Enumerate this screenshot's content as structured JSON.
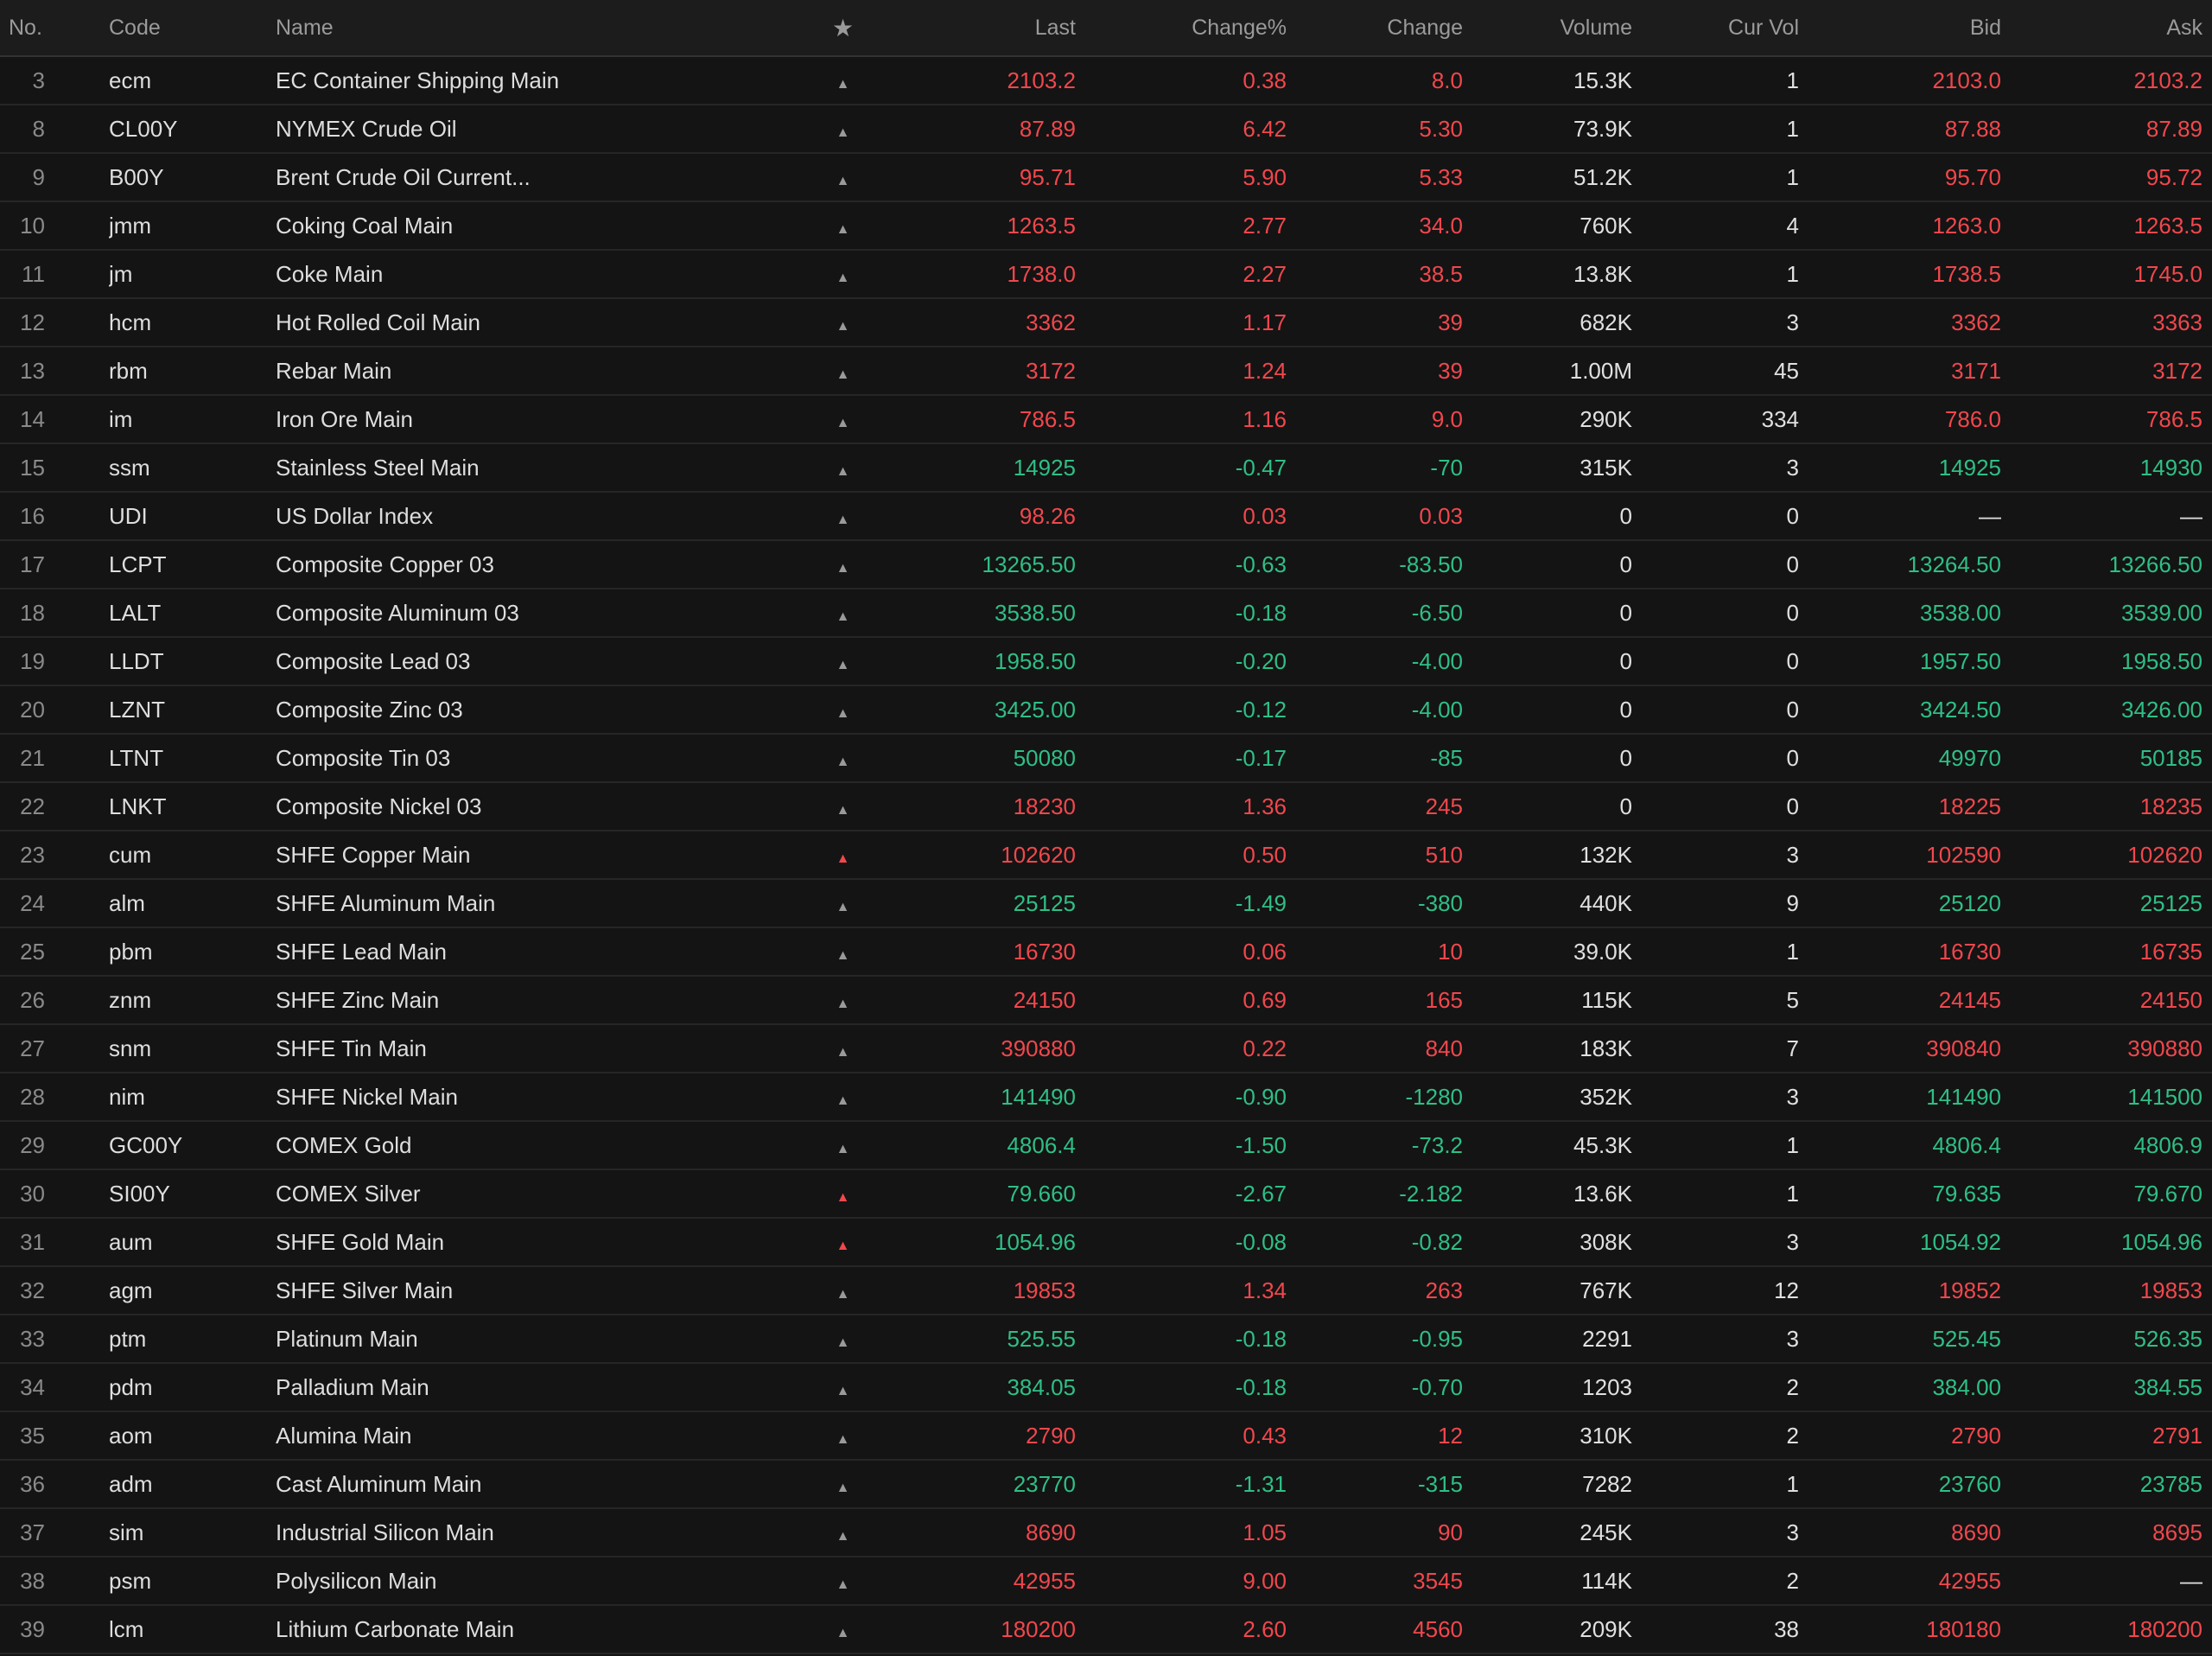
{
  "colors": {
    "background": "#141414",
    "header_background": "#1c1c1c",
    "up": "#f1474d",
    "down": "#2fbf86",
    "neutral": "#e0e0e0",
    "muted": "#9a9a9a"
  },
  "header": {
    "no": "No.",
    "code": "Code",
    "name": "Name",
    "fav_icon": "star-icon",
    "last": "Last",
    "change_pct": "Change%",
    "change": "Change",
    "volume": "Volume",
    "cur_vol": "Cur Vol",
    "bid": "Bid",
    "ask": "Ask"
  },
  "rows": [
    {
      "no": "3",
      "code": "ecm",
      "name": "EC Container Shipping Main",
      "mark": "▲",
      "mark_active": false,
      "last": "2103.2",
      "pct": "0.38",
      "chg": "8.0",
      "volume": "15.3K",
      "cur": "1",
      "bid": "2103.0",
      "ask": "2103.2",
      "trend": "up",
      "bid_trend": "up",
      "ask_trend": "up"
    },
    {
      "no": "8",
      "code": "CL00Y",
      "name": "NYMEX Crude Oil",
      "mark": "▲",
      "mark_active": false,
      "last": "87.89",
      "pct": "6.42",
      "chg": "5.30",
      "volume": "73.9K",
      "cur": "1",
      "bid": "87.88",
      "ask": "87.89",
      "trend": "up",
      "bid_trend": "up",
      "ask_trend": "up"
    },
    {
      "no": "9",
      "code": "B00Y",
      "name": "Brent Crude Oil Current...",
      "mark": "▲",
      "mark_active": false,
      "last": "95.71",
      "pct": "5.90",
      "chg": "5.33",
      "volume": "51.2K",
      "cur": "1",
      "bid": "95.70",
      "ask": "95.72",
      "trend": "up",
      "bid_trend": "up",
      "ask_trend": "up"
    },
    {
      "no": "10",
      "code": "jmm",
      "name": "Coking Coal Main",
      "mark": "▲",
      "mark_active": false,
      "last": "1263.5",
      "pct": "2.77",
      "chg": "34.0",
      "volume": "760K",
      "cur": "4",
      "bid": "1263.0",
      "ask": "1263.5",
      "trend": "up",
      "bid_trend": "up",
      "ask_trend": "up"
    },
    {
      "no": "11",
      "code": "jm",
      "name": "Coke Main",
      "mark": "▲",
      "mark_active": false,
      "last": "1738.0",
      "pct": "2.27",
      "chg": "38.5",
      "volume": "13.8K",
      "cur": "1",
      "bid": "1738.5",
      "ask": "1745.0",
      "trend": "up",
      "bid_trend": "up",
      "ask_trend": "up"
    },
    {
      "no": "12",
      "code": "hcm",
      "name": "Hot Rolled Coil Main",
      "mark": "▲",
      "mark_active": false,
      "last": "3362",
      "pct": "1.17",
      "chg": "39",
      "volume": "682K",
      "cur": "3",
      "bid": "3362",
      "ask": "3363",
      "trend": "up",
      "bid_trend": "up",
      "ask_trend": "up"
    },
    {
      "no": "13",
      "code": "rbm",
      "name": "Rebar Main",
      "mark": "▲",
      "mark_active": false,
      "last": "3172",
      "pct": "1.24",
      "chg": "39",
      "volume": "1.00M",
      "cur": "45",
      "bid": "3171",
      "ask": "3172",
      "trend": "up",
      "bid_trend": "up",
      "ask_trend": "up"
    },
    {
      "no": "14",
      "code": "im",
      "name": "Iron Ore Main",
      "mark": "▲",
      "mark_active": false,
      "last": "786.5",
      "pct": "1.16",
      "chg": "9.0",
      "volume": "290K",
      "cur": "334",
      "bid": "786.0",
      "ask": "786.5",
      "trend": "up",
      "bid_trend": "up",
      "ask_trend": "up"
    },
    {
      "no": "15",
      "code": "ssm",
      "name": "Stainless Steel Main",
      "mark": "▲",
      "mark_active": false,
      "last": "14925",
      "pct": "-0.47",
      "chg": "-70",
      "volume": "315K",
      "cur": "3",
      "bid": "14925",
      "ask": "14930",
      "trend": "down",
      "bid_trend": "down",
      "ask_trend": "down"
    },
    {
      "no": "16",
      "code": "UDI",
      "name": "US Dollar Index",
      "mark": "▲",
      "mark_active": false,
      "last": "98.26",
      "pct": "0.03",
      "chg": "0.03",
      "volume": "0",
      "cur": "0",
      "bid": "—",
      "ask": "—",
      "trend": "up",
      "bid_trend": "flat",
      "ask_trend": "flat"
    },
    {
      "no": "17",
      "code": "LCPT",
      "name": "Composite Copper 03",
      "mark": "▲",
      "mark_active": false,
      "last": "13265.50",
      "pct": "-0.63",
      "chg": "-83.50",
      "volume": "0",
      "cur": "0",
      "bid": "13264.50",
      "ask": "13266.50",
      "trend": "down",
      "bid_trend": "down",
      "ask_trend": "down"
    },
    {
      "no": "18",
      "code": "LALT",
      "name": "Composite Aluminum 03",
      "mark": "▲",
      "mark_active": false,
      "last": "3538.50",
      "pct": "-0.18",
      "chg": "-6.50",
      "volume": "0",
      "cur": "0",
      "bid": "3538.00",
      "ask": "3539.00",
      "trend": "down",
      "bid_trend": "down",
      "ask_trend": "down"
    },
    {
      "no": "19",
      "code": "LLDT",
      "name": "Composite Lead 03",
      "mark": "▲",
      "mark_active": false,
      "last": "1958.50",
      "pct": "-0.20",
      "chg": "-4.00",
      "volume": "0",
      "cur": "0",
      "bid": "1957.50",
      "ask": "1958.50",
      "trend": "down",
      "bid_trend": "down",
      "ask_trend": "down"
    },
    {
      "no": "20",
      "code": "LZNT",
      "name": "Composite Zinc 03",
      "mark": "▲",
      "mark_active": false,
      "last": "3425.00",
      "pct": "-0.12",
      "chg": "-4.00",
      "volume": "0",
      "cur": "0",
      "bid": "3424.50",
      "ask": "3426.00",
      "trend": "down",
      "bid_trend": "down",
      "ask_trend": "down"
    },
    {
      "no": "21",
      "code": "LTNT",
      "name": "Composite Tin 03",
      "mark": "▲",
      "mark_active": false,
      "last": "50080",
      "pct": "-0.17",
      "chg": "-85",
      "volume": "0",
      "cur": "0",
      "bid": "49970",
      "ask": "50185",
      "trend": "down",
      "bid_trend": "down",
      "ask_trend": "down"
    },
    {
      "no": "22",
      "code": "LNKT",
      "name": "Composite Nickel 03",
      "mark": "▲",
      "mark_active": false,
      "last": "18230",
      "pct": "1.36",
      "chg": "245",
      "volume": "0",
      "cur": "0",
      "bid": "18225",
      "ask": "18235",
      "trend": "up",
      "bid_trend": "up",
      "ask_trend": "up"
    },
    {
      "no": "23",
      "code": "cum",
      "name": "SHFE Copper Main",
      "mark": "▲",
      "mark_active": true,
      "last": "102620",
      "pct": "0.50",
      "chg": "510",
      "volume": "132K",
      "cur": "3",
      "bid": "102590",
      "ask": "102620",
      "trend": "up",
      "bid_trend": "up",
      "ask_trend": "up"
    },
    {
      "no": "24",
      "code": "alm",
      "name": "SHFE Aluminum Main",
      "mark": "▲",
      "mark_active": false,
      "last": "25125",
      "pct": "-1.49",
      "chg": "-380",
      "volume": "440K",
      "cur": "9",
      "bid": "25120",
      "ask": "25125",
      "trend": "down",
      "bid_trend": "down",
      "ask_trend": "down"
    },
    {
      "no": "25",
      "code": "pbm",
      "name": "SHFE Lead Main",
      "mark": "▲",
      "mark_active": false,
      "last": "16730",
      "pct": "0.06",
      "chg": "10",
      "volume": "39.0K",
      "cur": "1",
      "bid": "16730",
      "ask": "16735",
      "trend": "up",
      "bid_trend": "up",
      "ask_trend": "up"
    },
    {
      "no": "26",
      "code": "znm",
      "name": "SHFE Zinc Main",
      "mark": "▲",
      "mark_active": false,
      "last": "24150",
      "pct": "0.69",
      "chg": "165",
      "volume": "115K",
      "cur": "5",
      "bid": "24145",
      "ask": "24150",
      "trend": "up",
      "bid_trend": "up",
      "ask_trend": "up"
    },
    {
      "no": "27",
      "code": "snm",
      "name": "SHFE Tin Main",
      "mark": "▲",
      "mark_active": false,
      "last": "390880",
      "pct": "0.22",
      "chg": "840",
      "volume": "183K",
      "cur": "7",
      "bid": "390840",
      "ask": "390880",
      "trend": "up",
      "bid_trend": "up",
      "ask_trend": "up"
    },
    {
      "no": "28",
      "code": "nim",
      "name": "SHFE Nickel Main",
      "mark": "▲",
      "mark_active": false,
      "last": "141490",
      "pct": "-0.90",
      "chg": "-1280",
      "volume": "352K",
      "cur": "3",
      "bid": "141490",
      "ask": "141500",
      "trend": "down",
      "bid_trend": "down",
      "ask_trend": "down"
    },
    {
      "no": "29",
      "code": "GC00Y",
      "name": "COMEX Gold",
      "mark": "▲",
      "mark_active": false,
      "last": "4806.4",
      "pct": "-1.50",
      "chg": "-73.2",
      "volume": "45.3K",
      "cur": "1",
      "bid": "4806.4",
      "ask": "4806.9",
      "trend": "down",
      "bid_trend": "down",
      "ask_trend": "down"
    },
    {
      "no": "30",
      "code": "SI00Y",
      "name": "COMEX Silver",
      "mark": "▲",
      "mark_active": true,
      "last": "79.660",
      "pct": "-2.67",
      "chg": "-2.182",
      "volume": "13.6K",
      "cur": "1",
      "bid": "79.635",
      "ask": "79.670",
      "trend": "down",
      "bid_trend": "down",
      "ask_trend": "down"
    },
    {
      "no": "31",
      "code": "aum",
      "name": "SHFE Gold Main",
      "mark": "▲",
      "mark_active": true,
      "last": "1054.96",
      "pct": "-0.08",
      "chg": "-0.82",
      "volume": "308K",
      "cur": "3",
      "bid": "1054.92",
      "ask": "1054.96",
      "trend": "down",
      "bid_trend": "down",
      "ask_trend": "down"
    },
    {
      "no": "32",
      "code": "agm",
      "name": "SHFE Silver Main",
      "mark": "▲",
      "mark_active": false,
      "last": "19853",
      "pct": "1.34",
      "chg": "263",
      "volume": "767K",
      "cur": "12",
      "bid": "19852",
      "ask": "19853",
      "trend": "up",
      "bid_trend": "up",
      "ask_trend": "up"
    },
    {
      "no": "33",
      "code": "ptm",
      "name": "Platinum Main",
      "mark": "▲",
      "mark_active": false,
      "last": "525.55",
      "pct": "-0.18",
      "chg": "-0.95",
      "volume": "2291",
      "cur": "3",
      "bid": "525.45",
      "ask": "526.35",
      "trend": "down",
      "bid_trend": "down",
      "ask_trend": "down"
    },
    {
      "no": "34",
      "code": "pdm",
      "name": "Palladium Main",
      "mark": "▲",
      "mark_active": false,
      "last": "384.05",
      "pct": "-0.18",
      "chg": "-0.70",
      "volume": "1203",
      "cur": "2",
      "bid": "384.00",
      "ask": "384.55",
      "trend": "down",
      "bid_trend": "down",
      "ask_trend": "down"
    },
    {
      "no": "35",
      "code": "aom",
      "name": "Alumina Main",
      "mark": "▲",
      "mark_active": false,
      "last": "2790",
      "pct": "0.43",
      "chg": "12",
      "volume": "310K",
      "cur": "2",
      "bid": "2790",
      "ask": "2791",
      "trend": "up",
      "bid_trend": "up",
      "ask_trend": "up"
    },
    {
      "no": "36",
      "code": "adm",
      "name": "Cast Aluminum Main",
      "mark": "▲",
      "mark_active": false,
      "last": "23770",
      "pct": "-1.31",
      "chg": "-315",
      "volume": "7282",
      "cur": "1",
      "bid": "23760",
      "ask": "23785",
      "trend": "down",
      "bid_trend": "down",
      "ask_trend": "down"
    },
    {
      "no": "37",
      "code": "sim",
      "name": "Industrial Silicon Main",
      "mark": "▲",
      "mark_active": false,
      "last": "8690",
      "pct": "1.05",
      "chg": "90",
      "volume": "245K",
      "cur": "3",
      "bid": "8690",
      "ask": "8695",
      "trend": "up",
      "bid_trend": "up",
      "ask_trend": "up"
    },
    {
      "no": "38",
      "code": "psm",
      "name": "Polysilicon Main",
      "mark": "▲",
      "mark_active": false,
      "last": "42955",
      "pct": "9.00",
      "chg": "3545",
      "volume": "114K",
      "cur": "2",
      "bid": "42955",
      "ask": "—",
      "trend": "up",
      "bid_trend": "up",
      "ask_trend": "flat"
    },
    {
      "no": "39",
      "code": "lcm",
      "name": "Lithium Carbonate Main",
      "mark": "▲",
      "mark_active": false,
      "last": "180200",
      "pct": "2.60",
      "chg": "4560",
      "volume": "209K",
      "cur": "38",
      "bid": "180180",
      "ask": "180200",
      "trend": "up",
      "bid_trend": "up",
      "ask_trend": "up"
    }
  ]
}
